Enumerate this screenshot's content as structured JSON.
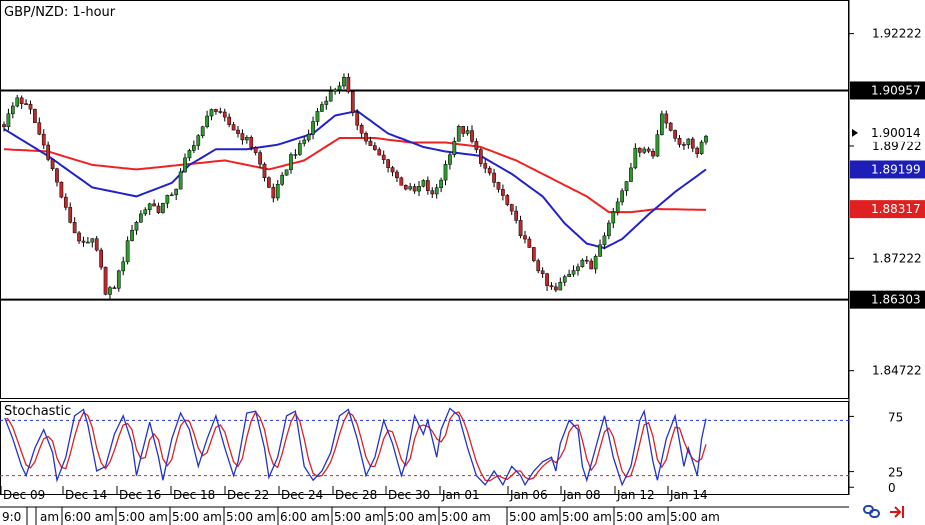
{
  "header": {
    "title": "GBP/NZD: 1-hour"
  },
  "indicator": {
    "title": "Stochastic"
  },
  "colors": {
    "bull": "#2e9a2e",
    "bear": "#c0282c",
    "wick": "#000000",
    "ma_fast": "#2222cc",
    "ma_slow": "#ee2222",
    "stoch_k": "#2233cc",
    "stoch_d": "#dd2222",
    "tag_fast": "#1d1db8",
    "tag_slow": "#e02020",
    "tag_dark": "#000000"
  },
  "icons": {
    "link": "link-icon",
    "arrow": "red-arrow-icon"
  },
  "chart_data": {
    "type": "candlestick",
    "title": "GBP/NZD: 1-hour",
    "ylim": [
      1.8407,
      1.9297
    ],
    "y_ticks": [
      "1.92222",
      "1.89722",
      "1.87222",
      "1.84722"
    ],
    "price_tags": [
      {
        "label": "1.90957",
        "value": 1.90957,
        "style": "dark"
      },
      {
        "label": "1.90014",
        "value": 1.90014,
        "style": "current"
      },
      {
        "label": "1.89199",
        "value": 1.89199,
        "style": "fast"
      },
      {
        "label": "1.88317",
        "value": 1.88317,
        "style": "slow"
      },
      {
        "label": "1.86303",
        "value": 1.86303,
        "style": "dark"
      }
    ],
    "horizontal_lines": [
      1.90957,
      1.86303
    ],
    "date_labels": [
      "Dec 09",
      "Dec 14",
      "Dec 16",
      "Dec 18",
      "Dec 22",
      "Dec 24",
      "Dec 28",
      "Dec 30",
      "Jan 01",
      "Jan 06",
      "Jan 08",
      "Jan 12",
      "Jan 14"
    ],
    "time_labels": [
      "9:0",
      "am",
      "6:00 am",
      "5:00 am",
      "5:00 am",
      "5:00 am",
      "6:00 am",
      "5:00 am",
      "5:00 am",
      "5:00 am",
      "5:00 am",
      "5:00 am",
      "5:00 am"
    ],
    "close_path": [
      [
        0,
        1.902
      ],
      [
        3,
        1.908
      ],
      [
        6,
        1.905
      ],
      [
        8,
        1.8998
      ],
      [
        10,
        1.895
      ],
      [
        12,
        1.889
      ],
      [
        14,
        1.883
      ],
      [
        16,
        1.878
      ],
      [
        18,
        1.875
      ],
      [
        20,
        1.876
      ],
      [
        22,
        1.871
      ],
      [
        23,
        1.864
      ],
      [
        25,
        1.866
      ],
      [
        27,
        1.872
      ],
      [
        29,
        1.879
      ],
      [
        31,
        1.882
      ],
      [
        33,
        1.8845
      ],
      [
        35,
        1.883
      ],
      [
        37,
        1.8855
      ],
      [
        39,
        1.888
      ],
      [
        41,
        1.894
      ],
      [
        43,
        1.898
      ],
      [
        45,
        1.901
      ],
      [
        47,
        1.906
      ],
      [
        49,
        1.904
      ],
      [
        51,
        1.902
      ],
      [
        53,
        1.9
      ],
      [
        55,
        1.8985
      ],
      [
        57,
        1.896
      ],
      [
        59,
        1.89
      ],
      [
        61,
        1.886
      ],
      [
        63,
        1.89
      ],
      [
        65,
        1.895
      ],
      [
        67,
        1.897
      ],
      [
        69,
        1.9
      ],
      [
        71,
        1.905
      ],
      [
        73,
        1.908
      ],
      [
        75,
        1.91
      ],
      [
        77,
        1.912
      ],
      [
        79,
        1.905
      ],
      [
        81,
        1.9
      ],
      [
        83,
        1.897
      ],
      [
        85,
        1.895
      ],
      [
        87,
        1.893
      ],
      [
        89,
        1.89
      ],
      [
        91,
        1.888
      ],
      [
        93,
        1.887
      ],
      [
        95,
        1.889
      ],
      [
        97,
        1.886
      ],
      [
        99,
        1.89
      ],
      [
        101,
        1.896
      ],
      [
        103,
        1.901
      ],
      [
        105,
        1.9
      ],
      [
        107,
        1.896
      ],
      [
        109,
        1.892
      ],
      [
        111,
        1.889
      ],
      [
        113,
        1.886
      ],
      [
        115,
        1.882
      ],
      [
        117,
        1.878
      ],
      [
        119,
        1.874
      ],
      [
        121,
        1.87
      ],
      [
        123,
        1.866
      ],
      [
        125,
        1.865
      ],
      [
        127,
        1.868
      ],
      [
        129,
        1.87
      ],
      [
        131,
        1.872
      ],
      [
        133,
        1.87
      ],
      [
        135,
        1.876
      ],
      [
        137,
        1.88
      ],
      [
        139,
        1.885
      ],
      [
        141,
        1.89
      ],
      [
        143,
        1.896
      ],
      [
        145,
        1.897
      ],
      [
        147,
        1.895
      ],
      [
        149,
        1.905
      ],
      [
        151,
        1.9
      ],
      [
        153,
        1.898
      ],
      [
        155,
        1.898
      ],
      [
        157,
        1.896
      ],
      [
        159,
        1.9001
      ]
    ],
    "ma_fast": [
      [
        0,
        1.901
      ],
      [
        10,
        1.895
      ],
      [
        20,
        1.888
      ],
      [
        30,
        1.886
      ],
      [
        38,
        1.889
      ],
      [
        42,
        1.893
      ],
      [
        48,
        1.8965
      ],
      [
        55,
        1.8965
      ],
      [
        62,
        1.8975
      ],
      [
        70,
        1.9
      ],
      [
        75,
        1.904
      ],
      [
        80,
        1.905
      ],
      [
        87,
        1.9
      ],
      [
        95,
        1.897
      ],
      [
        100,
        1.896
      ],
      [
        108,
        1.895
      ],
      [
        115,
        1.891
      ],
      [
        122,
        1.886
      ],
      [
        127,
        1.88
      ],
      [
        132,
        1.8755
      ],
      [
        136,
        1.8745
      ],
      [
        140,
        1.8765
      ],
      [
        146,
        1.882
      ],
      [
        152,
        1.887
      ],
      [
        159,
        1.892
      ]
    ],
    "ma_slow": [
      [
        0,
        1.8965
      ],
      [
        10,
        1.896
      ],
      [
        20,
        1.893
      ],
      [
        30,
        1.892
      ],
      [
        40,
        1.893
      ],
      [
        50,
        1.894
      ],
      [
        60,
        1.892
      ],
      [
        68,
        1.894
      ],
      [
        76,
        1.899
      ],
      [
        84,
        1.899
      ],
      [
        92,
        1.898
      ],
      [
        100,
        1.898
      ],
      [
        108,
        1.897
      ],
      [
        116,
        1.894
      ],
      [
        124,
        1.89
      ],
      [
        132,
        1.886
      ],
      [
        137,
        1.8825
      ],
      [
        142,
        1.8825
      ],
      [
        148,
        1.8832
      ],
      [
        159,
        1.883
      ]
    ],
    "stochastic": {
      "ylim": [
        0,
        100
      ],
      "levels": [
        80,
        20
      ],
      "ticks": [
        "75",
        "25",
        "0"
      ],
      "k": [
        [
          0,
          85
        ],
        [
          2,
          60
        ],
        [
          4,
          30
        ],
        [
          5,
          20
        ],
        [
          7,
          50
        ],
        [
          9,
          70
        ],
        [
          11,
          45
        ],
        [
          12,
          15
        ],
        [
          14,
          40
        ],
        [
          16,
          85
        ],
        [
          18,
          92
        ],
        [
          19,
          75
        ],
        [
          21,
          25
        ],
        [
          23,
          30
        ],
        [
          25,
          65
        ],
        [
          27,
          85
        ],
        [
          29,
          55
        ],
        [
          30,
          20
        ],
        [
          31,
          40
        ],
        [
          33,
          78
        ],
        [
          35,
          40
        ],
        [
          36,
          15
        ],
        [
          38,
          60
        ],
        [
          40,
          88
        ],
        [
          42,
          70
        ],
        [
          44,
          30
        ],
        [
          46,
          60
        ],
        [
          48,
          85
        ],
        [
          50,
          50
        ],
        [
          52,
          20
        ],
        [
          53,
          35
        ],
        [
          55,
          88
        ],
        [
          57,
          90
        ],
        [
          59,
          50
        ],
        [
          60,
          18
        ],
        [
          62,
          40
        ],
        [
          64,
          85
        ],
        [
          66,
          90
        ],
        [
          67,
          60
        ],
        [
          68,
          30
        ],
        [
          70,
          15
        ],
        [
          72,
          25
        ],
        [
          74,
          45
        ],
        [
          76,
          85
        ],
        [
          78,
          92
        ],
        [
          80,
          60
        ],
        [
          82,
          20
        ],
        [
          84,
          40
        ],
        [
          86,
          80
        ],
        [
          88,
          55
        ],
        [
          90,
          20
        ],
        [
          91,
          35
        ],
        [
          93,
          85
        ],
        [
          95,
          65
        ],
        [
          96,
          80
        ],
        [
          98,
          40
        ],
        [
          99,
          70
        ],
        [
          101,
          93
        ],
        [
          103,
          85
        ],
        [
          105,
          50
        ],
        [
          107,
          20
        ],
        [
          109,
          10
        ],
        [
          111,
          25
        ],
        [
          113,
          10
        ],
        [
          115,
          30
        ],
        [
          117,
          20
        ],
        [
          118,
          10
        ],
        [
          120,
          25
        ],
        [
          122,
          35
        ],
        [
          124,
          40
        ],
        [
          125,
          25
        ],
        [
          126,
          55
        ],
        [
          128,
          80
        ],
        [
          130,
          70
        ],
        [
          131,
          30
        ],
        [
          132,
          15
        ],
        [
          134,
          50
        ],
        [
          136,
          85
        ],
        [
          138,
          40
        ],
        [
          140,
          10
        ],
        [
          142,
          30
        ],
        [
          144,
          80
        ],
        [
          145,
          90
        ],
        [
          147,
          35
        ],
        [
          148,
          15
        ],
        [
          150,
          60
        ],
        [
          152,
          85
        ],
        [
          154,
          30
        ],
        [
          155,
          50
        ],
        [
          157,
          20
        ],
        [
          158,
          60
        ],
        [
          159,
          82
        ]
      ]
    }
  }
}
